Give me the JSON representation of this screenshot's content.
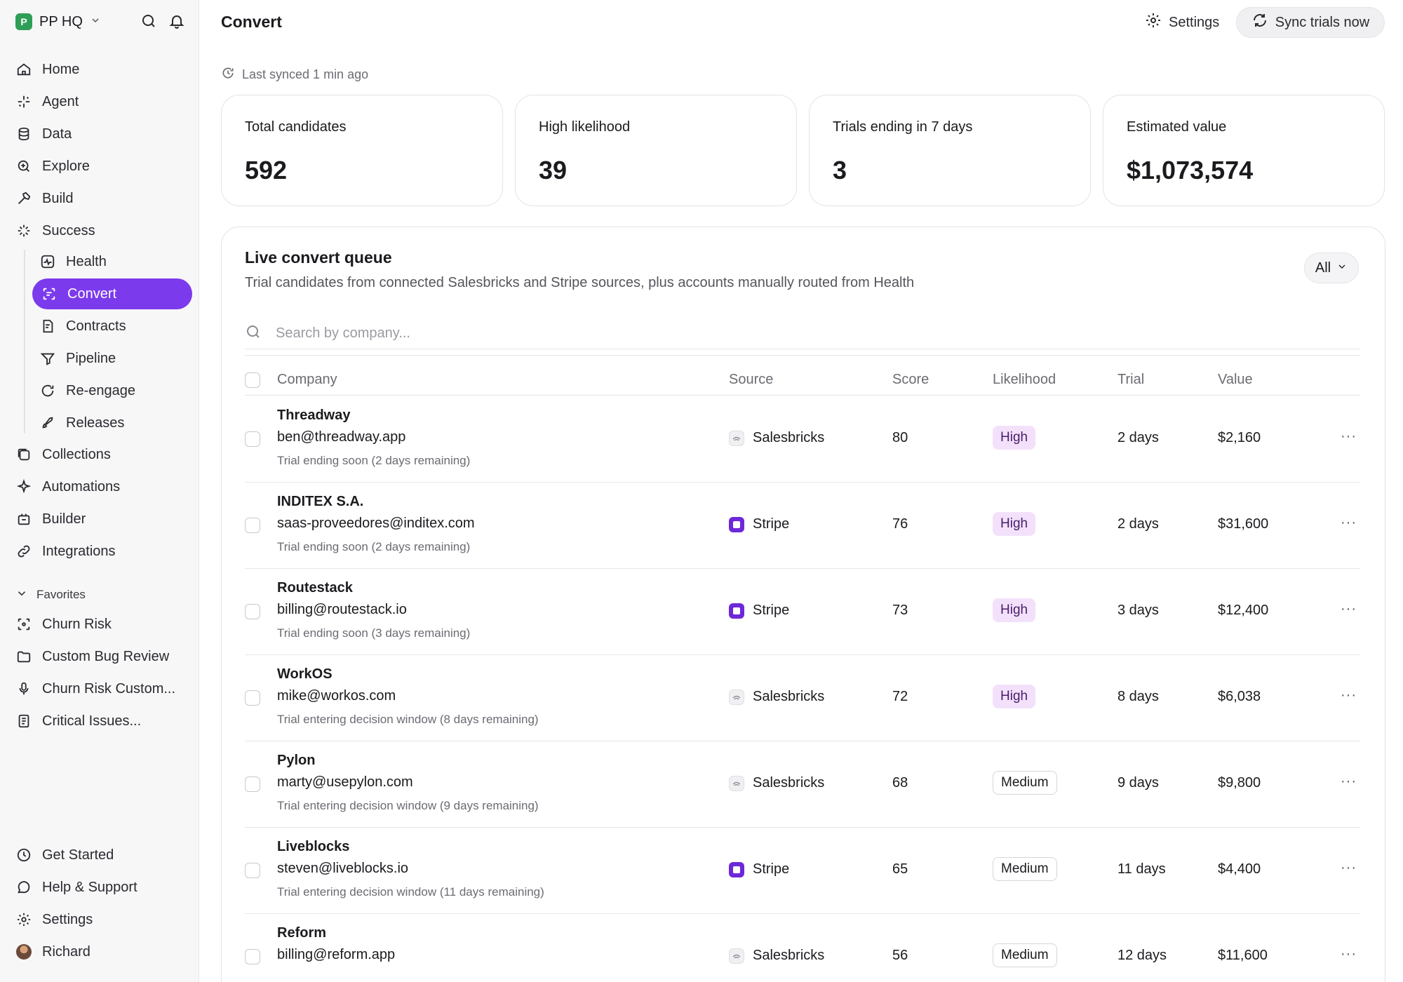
{
  "workspace": {
    "name": "PP HQ"
  },
  "nav": [
    {
      "label": "Home",
      "icon": "home-icon"
    },
    {
      "label": "Agent",
      "icon": "sparkle-icon"
    },
    {
      "label": "Data",
      "icon": "database-icon"
    },
    {
      "label": "Explore",
      "icon": "explore-icon"
    },
    {
      "label": "Build",
      "icon": "hammer-icon"
    },
    {
      "label": "Success",
      "icon": "success-icon"
    }
  ],
  "subnav": [
    {
      "label": "Health",
      "icon": "pulse-icon"
    },
    {
      "label": "Convert",
      "icon": "convert-icon",
      "active": true
    },
    {
      "label": "Contracts",
      "icon": "contract-icon"
    },
    {
      "label": "Pipeline",
      "icon": "pipeline-icon"
    },
    {
      "label": "Re-engage",
      "icon": "reengage-icon"
    },
    {
      "label": "Releases",
      "icon": "rocket-icon"
    }
  ],
  "nav2": [
    {
      "label": "Collections",
      "icon": "collections-icon"
    },
    {
      "label": "Automations",
      "icon": "automation-icon"
    },
    {
      "label": "Builder",
      "icon": "builder-icon"
    },
    {
      "label": "Integrations",
      "icon": "integrations-icon"
    }
  ],
  "favorites": {
    "label": "Favorites",
    "items": [
      {
        "label": "Churn Risk",
        "icon": "scan-icon"
      },
      {
        "label": "Custom Bug Review",
        "icon": "folder-icon"
      },
      {
        "label": "Churn Risk Custom...",
        "icon": "mic-icon"
      },
      {
        "label": "Critical Issues...",
        "icon": "doc-icon"
      }
    ]
  },
  "bottom_nav": [
    {
      "label": "Get Started",
      "icon": "clock-icon"
    },
    {
      "label": "Help & Support",
      "icon": "chat-icon"
    },
    {
      "label": "Settings",
      "icon": "gear-icon"
    },
    {
      "label": "Richard",
      "icon": "avatar"
    }
  ],
  "header": {
    "title": "Convert",
    "settings_label": "Settings",
    "sync_label": "Sync trials now",
    "last_synced": "Last synced 1 min ago"
  },
  "stats": [
    {
      "label": "Total candidates",
      "value": "592"
    },
    {
      "label": "High likelihood",
      "value": "39"
    },
    {
      "label": "Trials ending in 7 days",
      "value": "3"
    },
    {
      "label": "Estimated value",
      "value": "$1,073,574"
    }
  ],
  "queue": {
    "title": "Live convert queue",
    "subtitle": "Trial candidates from connected Salesbricks and Stripe sources, plus accounts manually routed from Health",
    "filter_label": "All",
    "search_placeholder": "Search by company...",
    "columns": {
      "company": "Company",
      "source": "Source",
      "score": "Score",
      "likelihood": "Likelihood",
      "trial": "Trial",
      "value": "Value"
    },
    "rows": [
      {
        "company": "Threadway",
        "email": "ben@threadway.app",
        "note": "Trial ending soon (2 days remaining)",
        "source": "Salesbricks",
        "score": "80",
        "likelihood": "High",
        "trial": "2 days",
        "value": "$2,160"
      },
      {
        "company": "INDITEX S.A.",
        "email": "saas-proveedores@inditex.com",
        "note": "Trial ending soon (2 days remaining)",
        "source": "Stripe",
        "score": "76",
        "likelihood": "High",
        "trial": "2 days",
        "value": "$31,600"
      },
      {
        "company": "Routestack",
        "email": "billing@routestack.io",
        "note": "Trial ending soon (3 days remaining)",
        "source": "Stripe",
        "score": "73",
        "likelihood": "High",
        "trial": "3 days",
        "value": "$12,400"
      },
      {
        "company": "WorkOS",
        "email": "mike@workos.com",
        "note": "Trial entering decision window (8 days remaining)",
        "source": "Salesbricks",
        "score": "72",
        "likelihood": "High",
        "trial": "8 days",
        "value": "$6,038"
      },
      {
        "company": "Pylon",
        "email": "marty@usepylon.com",
        "note": "Trial entering decision window (9 days remaining)",
        "source": "Salesbricks",
        "score": "68",
        "likelihood": "Medium",
        "trial": "9 days",
        "value": "$9,800"
      },
      {
        "company": "Liveblocks",
        "email": "steven@liveblocks.io",
        "note": "Trial entering decision window (11 days remaining)",
        "source": "Stripe",
        "score": "65",
        "likelihood": "Medium",
        "trial": "11 days",
        "value": "$4,400"
      },
      {
        "company": "Reform",
        "email": "billing@reform.app",
        "note": "",
        "source": "Salesbricks",
        "score": "56",
        "likelihood": "Medium",
        "trial": "12 days",
        "value": "$11,600"
      }
    ]
  },
  "colors": {
    "accent": "#7c3aed",
    "high_badge": "#f3e1fb",
    "stripe": "#6d28d9",
    "logo": "#2f9e57"
  }
}
